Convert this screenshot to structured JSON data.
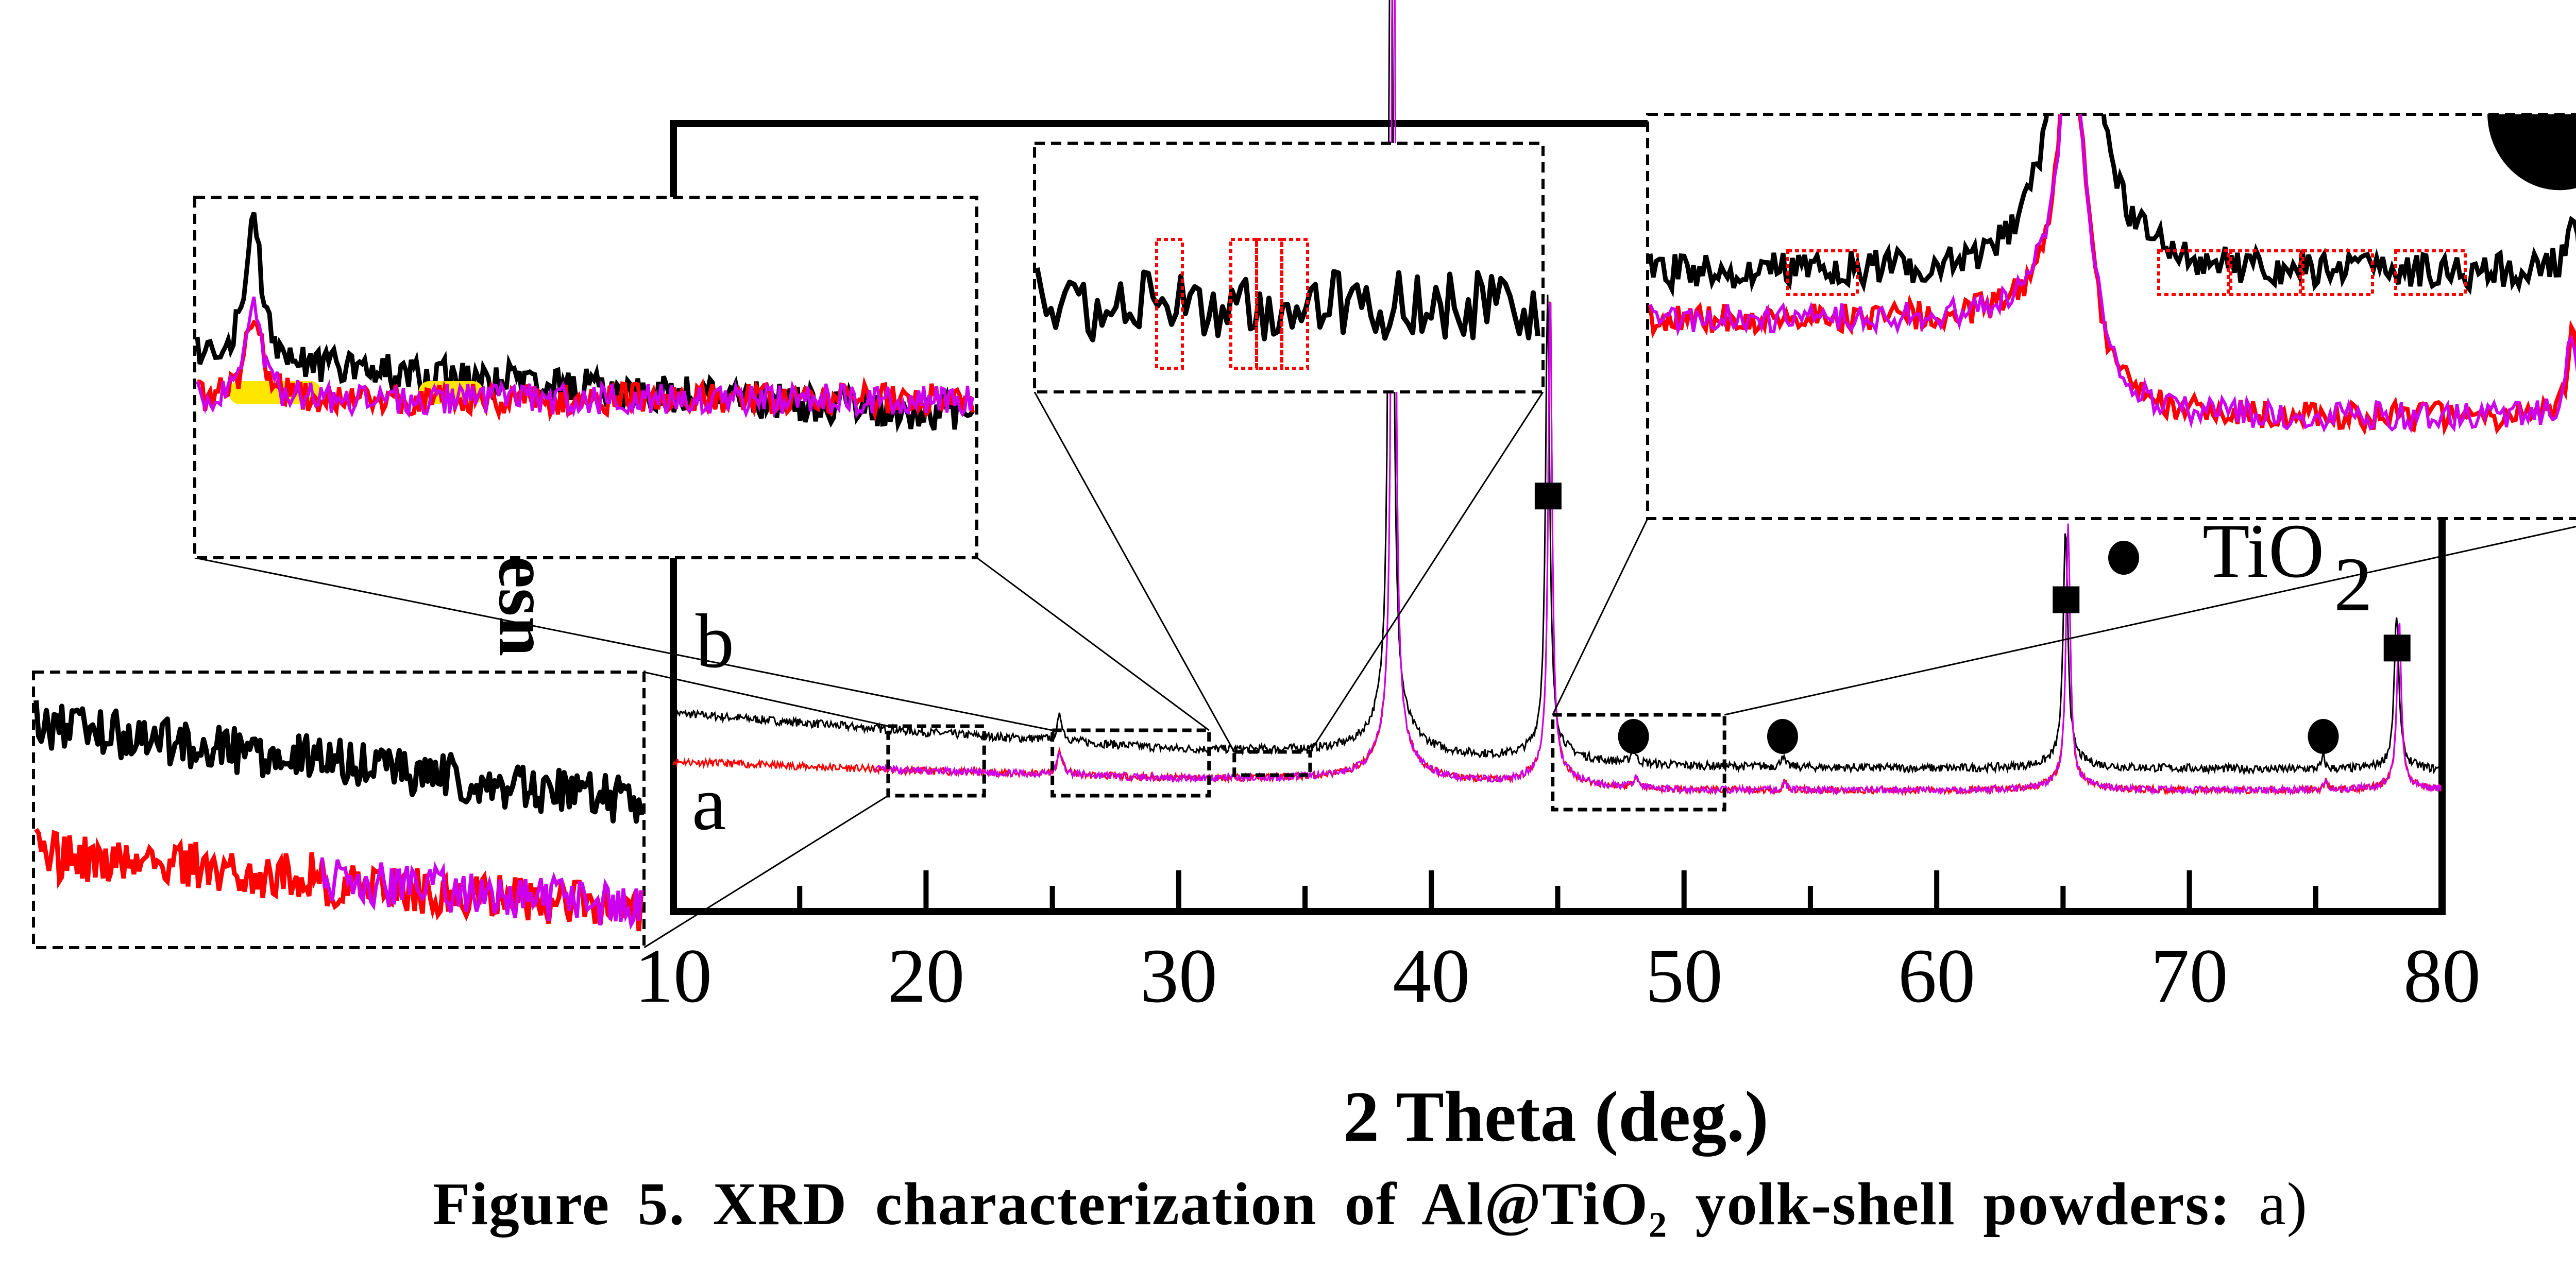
{
  "chart_data": {
    "type": "line",
    "title": "",
    "xlabel": "2 Theta (deg.)",
    "ylabel_visible_fragment": "esn",
    "xlim": [
      10,
      80
    ],
    "xticks": [
      10,
      20,
      30,
      40,
      50,
      60,
      70,
      80
    ],
    "xticks_minor": [
      15,
      25,
      35,
      45,
      55,
      65,
      75
    ],
    "grid": false,
    "series": [
      {
        "name": "b",
        "color": "#000000",
        "baseline": [
          [
            10,
            0.82
          ],
          [
            20,
            0.74
          ],
          [
            30,
            0.67
          ],
          [
            38,
            0.66
          ],
          [
            44,
            0.62
          ],
          [
            50,
            0.6
          ],
          [
            60,
            0.59
          ],
          [
            70,
            0.59
          ],
          [
            80,
            0.58
          ]
        ],
        "peaks": [
          {
            "x": 25.3,
            "height": 0.1,
            "width": 0.25
          },
          {
            "x": 38.4,
            "height": 4.5,
            "width": 0.18
          },
          {
            "x": 44.6,
            "height": 1.85,
            "width": 0.2
          },
          {
            "x": 48.0,
            "height": 0.06,
            "width": 0.2
          },
          {
            "x": 53.9,
            "height": 0.05,
            "width": 0.15
          },
          {
            "x": 65.1,
            "height": 0.95,
            "width": 0.22
          },
          {
            "x": 75.3,
            "height": 0.05,
            "width": 0.15
          },
          {
            "x": 78.2,
            "height": 0.62,
            "width": 0.22
          }
        ]
      },
      {
        "name": "a",
        "color": "#ff0000",
        "baseline": [
          [
            10,
            0.62
          ],
          [
            20,
            0.58
          ],
          [
            30,
            0.55
          ],
          [
            38,
            0.55
          ],
          [
            44,
            0.52
          ],
          [
            50,
            0.5
          ],
          [
            60,
            0.5
          ],
          [
            70,
            0.5
          ],
          [
            80,
            0.5
          ]
        ],
        "peaks": [
          {
            "x": 25.3,
            "height": 0.09,
            "width": 0.25
          },
          {
            "x": 38.5,
            "height": 4.6,
            "width": 0.16
          },
          {
            "x": 44.7,
            "height": 2.0,
            "width": 0.18
          },
          {
            "x": 48.1,
            "height": 0.05,
            "width": 0.2
          },
          {
            "x": 54.0,
            "height": 0.04,
            "width": 0.15
          },
          {
            "x": 65.2,
            "height": 1.05,
            "width": 0.2
          },
          {
            "x": 75.4,
            "height": 0.04,
            "width": 0.15
          },
          {
            "x": 78.3,
            "height": 0.68,
            "width": 0.2
          }
        ]
      },
      {
        "name": "a (overlay)",
        "color": "#cc00ee",
        "start": 18
      }
    ],
    "curve_labels": [
      {
        "text": "b",
        "x": 11.0,
        "y": 1.15
      },
      {
        "text": "a",
        "x": 11.0,
        "y": 0.42
      }
    ],
    "markers": [
      {
        "shape": "square",
        "phase": "Al",
        "x": 44.6
      },
      {
        "shape": "square",
        "phase": "Al",
        "x": 65.1
      },
      {
        "shape": "square",
        "phase": "Al",
        "x": 78.2
      },
      {
        "shape": "circle",
        "phase": "TiO2",
        "x": 48.0
      },
      {
        "shape": "circle",
        "phase": "TiO2",
        "x": 53.9
      },
      {
        "shape": "circle",
        "phase": "TiO2",
        "x": 75.3
      }
    ],
    "legend": [
      {
        "symbol": "circle",
        "label": "TiO",
        "subscript": "2"
      }
    ],
    "zoom_regions": [
      {
        "name": "region-18-22",
        "x_range": [
          18.5,
          22.3
        ]
      },
      {
        "name": "region-25-31",
        "x_range": [
          25.0,
          31.2
        ]
      },
      {
        "name": "region-32-35",
        "x_range": [
          32.2,
          35.2
        ]
      },
      {
        "name": "region-45-52",
        "x_range": [
          44.8,
          51.6
        ]
      }
    ],
    "insets": [
      {
        "name": "inset-bottom-left",
        "source": "region-18-22",
        "highlight": "red trace turns magenta"
      },
      {
        "name": "inset-top-left",
        "source": "region-25-31",
        "highlight": "yellow-highlighted red segments"
      },
      {
        "name": "inset-top-middle",
        "source": "region-32-35",
        "highlight_boxes": 4
      },
      {
        "name": "inset-top-right",
        "source": "region-45-52",
        "highlight_boxes": 5
      }
    ]
  },
  "figure": {
    "caption_bold": "Figure 5. XRD characterization of Al@TiO",
    "caption_sub": "2",
    "caption_bold_rest": " yolk-shell powders:",
    "caption_plain": " a)"
  }
}
